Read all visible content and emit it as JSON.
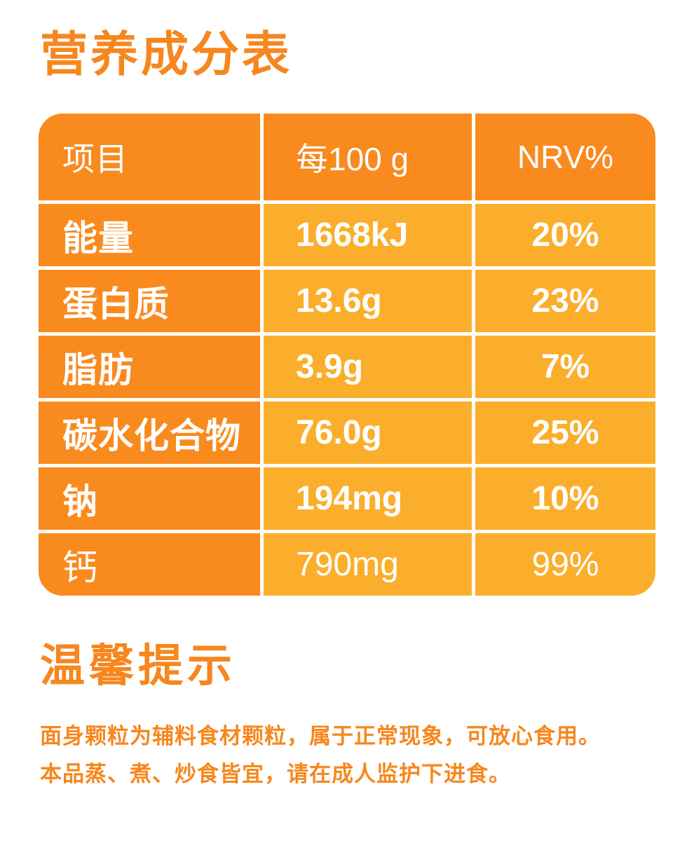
{
  "page": {
    "title": "营养成分表"
  },
  "table": {
    "headers": {
      "item": "项目",
      "per100g": "每100 g",
      "nrv": "NRV%"
    },
    "rows": [
      {
        "item": "能量",
        "per100g": "1668kJ",
        "nrv": "20%"
      },
      {
        "item": "蛋白质",
        "per100g": "13.6g",
        "nrv": "23%"
      },
      {
        "item": "脂肪",
        "per100g": "3.9g",
        "nrv": "7%"
      },
      {
        "item": "碳水化合物",
        "per100g": "76.0g",
        "nrv": "25%"
      },
      {
        "item": "钠",
        "per100g": "194mg",
        "nrv": "10%"
      },
      {
        "item": "钙",
        "per100g": "790mg",
        "nrv": "99%"
      }
    ]
  },
  "tips": {
    "title": "温馨提示",
    "line1": "面身颗粒为辅料食材颗粒，属于正常现象，可放心食用。",
    "line2": "本品蒸、煮、炒食皆宜，请在成人监护下进食。"
  },
  "colors": {
    "cell_orange": "#F98A1E",
    "cell_amber": "#FBAE2B",
    "text_orange": "#F6871E",
    "cell_text": "#FFFFFF"
  }
}
